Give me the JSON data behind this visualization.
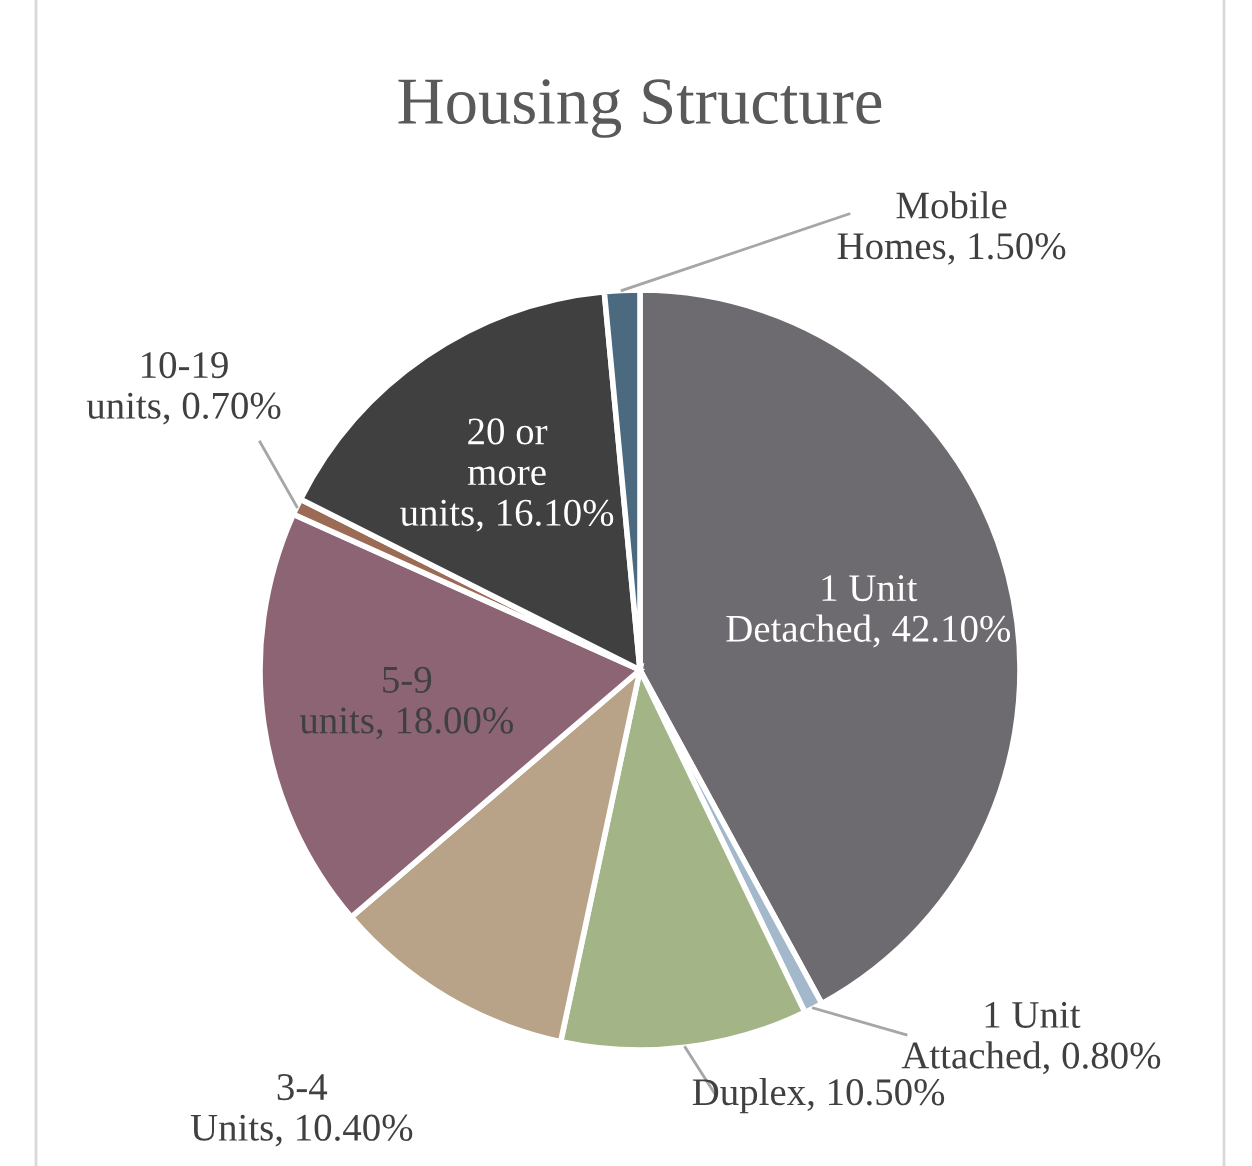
{
  "chart_data": {
    "type": "pie",
    "title": "Housing Structure",
    "categories": [
      "1 Unit\nDetached",
      "1 Unit\nAttached",
      "Duplex",
      "3-4\nUnits",
      "5-9\nunits",
      "10-19\nunits",
      "20 or\nmore\nunits",
      "Mobile\nHomes"
    ],
    "values": [
      42.1,
      0.8,
      10.5,
      10.4,
      18.0,
      0.7,
      16.1,
      1.5
    ],
    "value_labels": [
      "42.10%",
      "0.80%",
      "10.50%",
      "10.40%",
      "18.00%",
      "0.70%",
      "16.10%",
      "1.50%"
    ],
    "colors": [
      "#6d6b70",
      "#a4b8cc",
      "#a3b586",
      "#b8a388",
      "#8d6474",
      "#9b6b56",
      "#404040",
      "#4b6a80"
    ],
    "legend": false
  }
}
